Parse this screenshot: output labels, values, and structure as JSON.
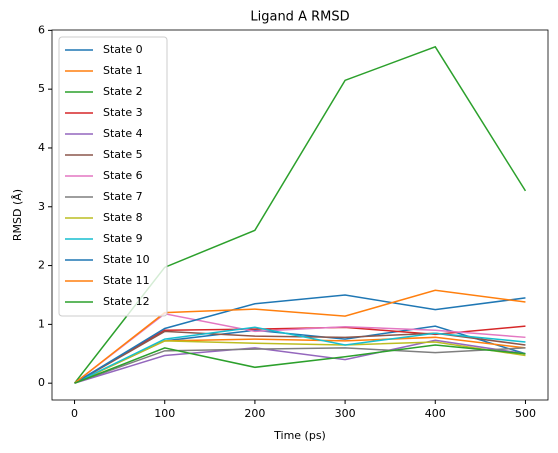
{
  "chart_data": {
    "type": "line",
    "title": "Ligand A RMSD",
    "x_label": "Time (ps)",
    "y_label": "RMSD (Å)",
    "x": [
      0,
      100,
      200,
      300,
      400,
      500
    ],
    "xlim": [
      -25,
      525
    ],
    "ylim": [
      -0.286,
      6.006
    ],
    "xticks": [
      0,
      100,
      200,
      300,
      400,
      500
    ],
    "yticks": [
      0,
      1,
      2,
      3,
      4,
      5,
      6
    ],
    "legend": "upper left",
    "series": [
      {
        "name": "State 0",
        "color": "#1f77b4",
        "values": [
          0,
          0.72,
          0.9,
          0.75,
          0.97,
          0.5
        ]
      },
      {
        "name": "State 1",
        "color": "#ff7f0e",
        "values": [
          0,
          0.72,
          0.75,
          0.72,
          0.78,
          0.6
        ]
      },
      {
        "name": "State 2",
        "color": "#2ca02c",
        "values": [
          0,
          1.97,
          2.6,
          5.15,
          5.72,
          3.27
        ]
      },
      {
        "name": "State 3",
        "color": "#d62728",
        "values": [
          0,
          0.9,
          0.92,
          0.95,
          0.83,
          0.97
        ]
      },
      {
        "name": "State 4",
        "color": "#9467bd",
        "values": [
          0,
          0.47,
          0.6,
          0.4,
          0.73,
          0.5
        ]
      },
      {
        "name": "State 5",
        "color": "#8c564b",
        "values": [
          0,
          0.88,
          0.8,
          0.78,
          0.85,
          0.65
        ]
      },
      {
        "name": "State 6",
        "color": "#e377c2",
        "values": [
          0,
          1.18,
          0.88,
          0.96,
          0.9,
          0.78
        ]
      },
      {
        "name": "State 7",
        "color": "#7f7f7f",
        "values": [
          0,
          0.55,
          0.58,
          0.6,
          0.52,
          0.6
        ]
      },
      {
        "name": "State 8",
        "color": "#bcbd22",
        "values": [
          0,
          0.72,
          0.68,
          0.65,
          0.7,
          0.47
        ]
      },
      {
        "name": "State 9",
        "color": "#17becf",
        "values": [
          0,
          0.75,
          0.95,
          0.65,
          0.85,
          0.7
        ]
      },
      {
        "name": "State 10",
        "color": "#1f77b4",
        "values": [
          0,
          0.93,
          1.35,
          1.5,
          1.25,
          1.45
        ]
      },
      {
        "name": "State 11",
        "color": "#ff7f0e",
        "values": [
          0,
          1.2,
          1.26,
          1.14,
          1.58,
          1.38
        ]
      },
      {
        "name": "State 12",
        "color": "#2ca02c",
        "values": [
          0,
          0.6,
          0.27,
          0.45,
          0.65,
          0.5
        ]
      }
    ]
  }
}
